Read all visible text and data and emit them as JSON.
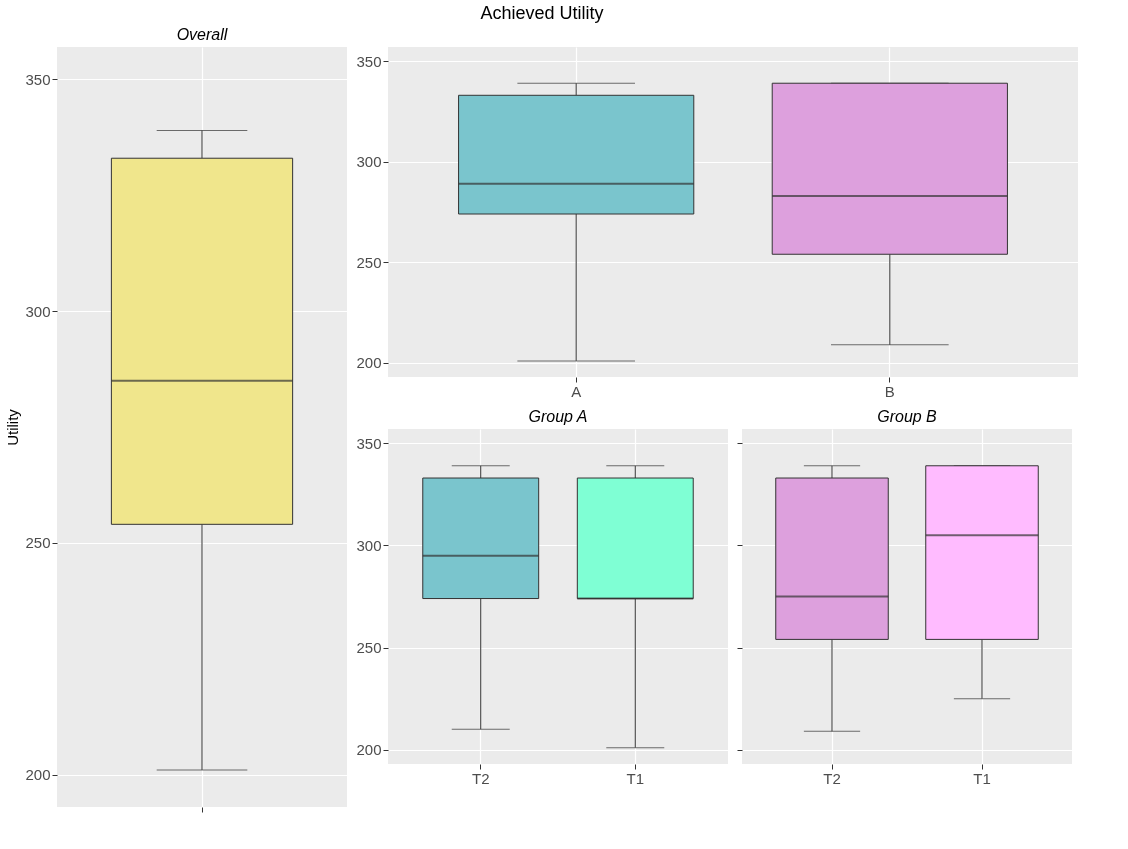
{
  "chart_data": [
    {
      "type": "box",
      "title": "Overall",
      "annotations": [
        "Achieved Utility"
      ],
      "ylabel": "Utility",
      "categories": [
        null
      ],
      "colors": [
        "#f0e68c"
      ],
      "boxes": [
        {
          "low": 201,
          "q1": 254,
          "median": 285,
          "q3": 333,
          "high": 339
        }
      ],
      "ylim": [
        193,
        357
      ],
      "yticks": [
        200,
        250,
        300,
        350
      ],
      "grid": true,
      "tick_labels": "y"
    },
    {
      "type": "box",
      "categories": [
        "A",
        "B"
      ],
      "colors": [
        "#7ac5cd",
        "#dda0dd"
      ],
      "boxes": [
        {
          "low": 201,
          "q1": 274,
          "median": 289,
          "q3": 333,
          "high": 339
        },
        {
          "low": 209,
          "q1": 254,
          "median": 283,
          "q3": 339,
          "high": 339
        }
      ],
      "ylim": [
        193,
        357
      ],
      "yticks": [
        200,
        250,
        300,
        350
      ],
      "grid": true
    },
    {
      "type": "box",
      "title": "Group A",
      "categories": [
        "T2",
        "T1"
      ],
      "colors": [
        "#7ac5cd",
        "#7fffd4"
      ],
      "boxes": [
        {
          "low": 210,
          "q1": 274,
          "median": 295,
          "q3": 333,
          "high": 339
        },
        {
          "low": 201,
          "q1": 274,
          "median": 274,
          "q3": 333,
          "high": 339
        }
      ],
      "ylim": [
        193,
        357
      ],
      "yticks": [
        200,
        250,
        300,
        350
      ],
      "grid": true
    },
    {
      "type": "box",
      "title": "Group B",
      "categories": [
        "T2",
        "T1"
      ],
      "colors": [
        "#dda0dd",
        "#ffbbff"
      ],
      "boxes": [
        {
          "low": 209,
          "q1": 254,
          "median": 275,
          "q3": 333,
          "high": 339
        },
        {
          "low": 225,
          "q1": 254,
          "median": 305,
          "q3": 339,
          "high": 339
        }
      ],
      "ylim": [
        193,
        357
      ],
      "yticks": [
        200,
        250,
        300,
        350
      ],
      "grid": true,
      "tick_labels": "x"
    }
  ]
}
